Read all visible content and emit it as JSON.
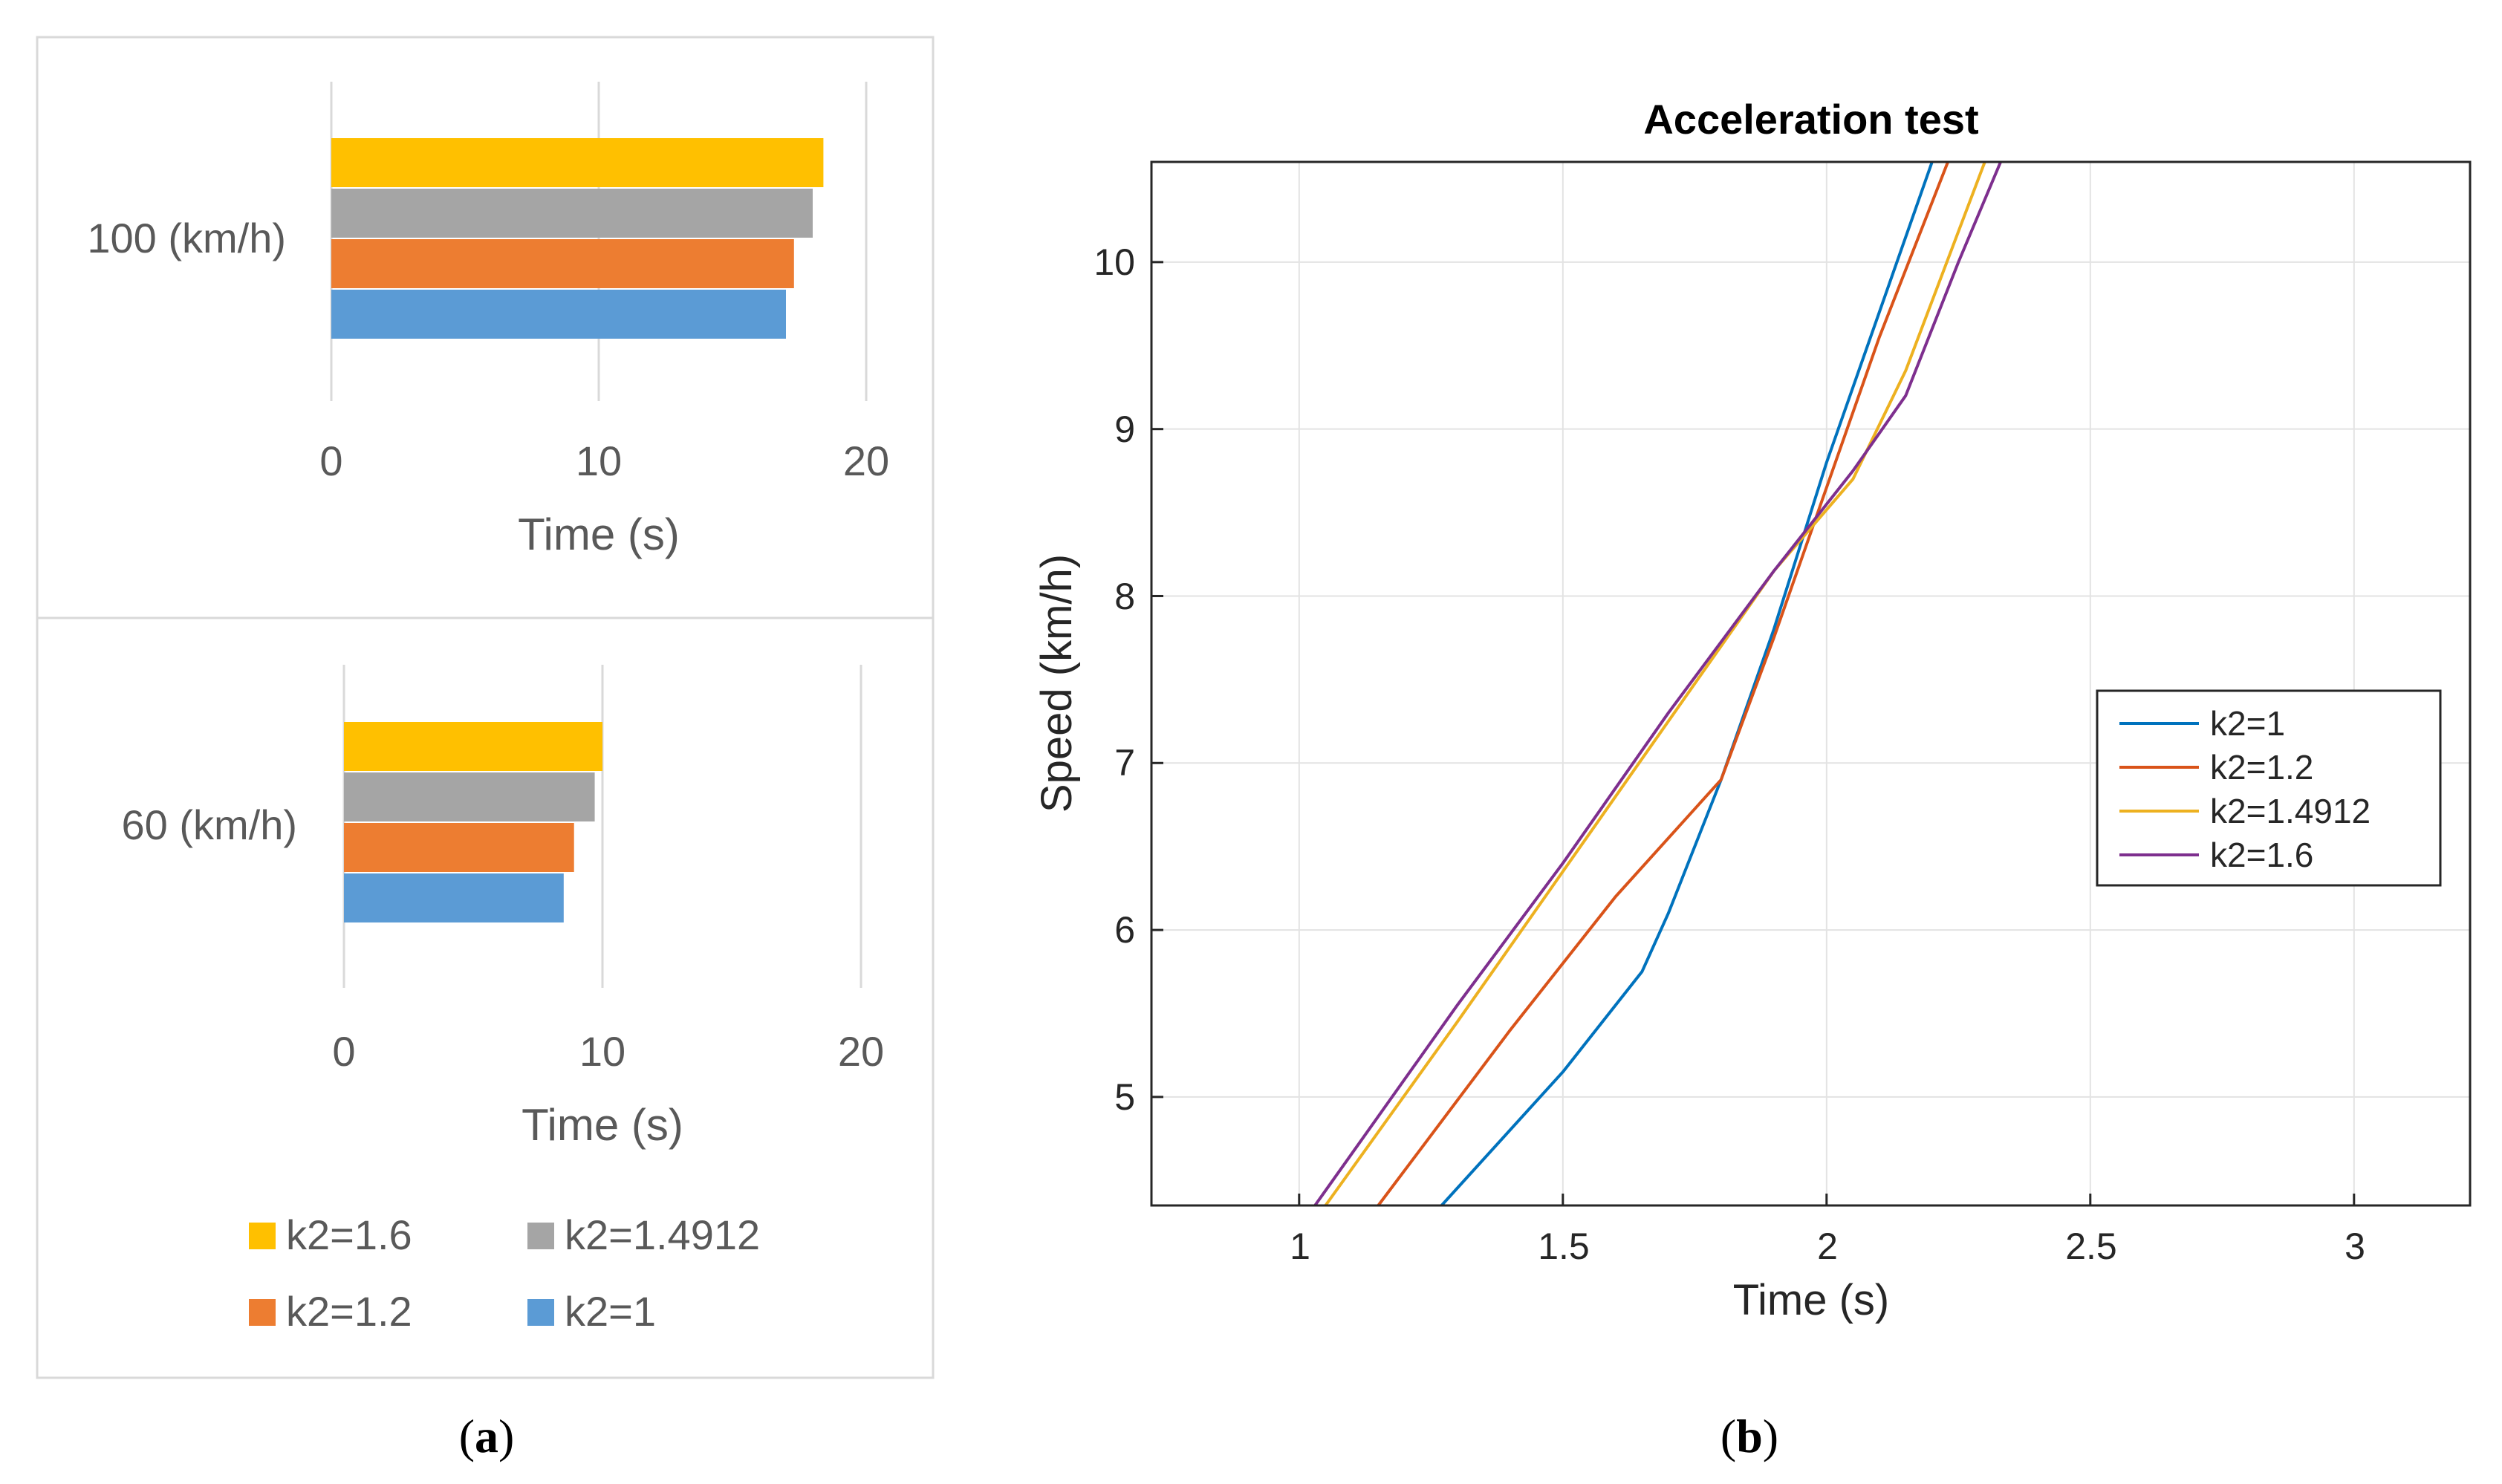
{
  "panels": {
    "a": {
      "caption_letter": "a"
    },
    "b": {
      "caption_letter": "b"
    }
  },
  "legend_a": [
    {
      "label": "k2=1.6",
      "color": "#FFC000"
    },
    {
      "label": "k2=1.4912",
      "color": "#A5A5A5"
    },
    {
      "label": "k2=1.2",
      "color": "#ED7D31"
    },
    {
      "label": "k2=1",
      "color": "#5B9BD5"
    }
  ],
  "chart_data": [
    {
      "id": "bar-100",
      "type": "bar",
      "orientation": "horizontal",
      "categories": [
        "100 (km/h)"
      ],
      "series": [
        {
          "name": "k2=1",
          "color": "#5B9BD5",
          "values": [
            17.0
          ]
        },
        {
          "name": "k2=1.2",
          "color": "#ED7D31",
          "values": [
            17.3
          ]
        },
        {
          "name": "k2=1.4912",
          "color": "#A5A5A5",
          "values": [
            18.0
          ]
        },
        {
          "name": "k2=1.6",
          "color": "#FFC000",
          "values": [
            18.4
          ]
        }
      ],
      "xlabel": "Time (s)",
      "xlim": [
        0,
        20
      ],
      "xticks": [
        "0",
        "10",
        "20"
      ],
      "grid": true
    },
    {
      "id": "bar-60",
      "type": "bar",
      "orientation": "horizontal",
      "categories": [
        "60 (km/h)"
      ],
      "series": [
        {
          "name": "k2=1",
          "color": "#5B9BD5",
          "values": [
            8.5
          ]
        },
        {
          "name": "k2=1.2",
          "color": "#ED7D31",
          "values": [
            8.9
          ]
        },
        {
          "name": "k2=1.4912",
          "color": "#A5A5A5",
          "values": [
            9.7
          ]
        },
        {
          "name": "k2=1.6",
          "color": "#FFC000",
          "values": [
            10.0
          ]
        }
      ],
      "xlabel": "Time (s)",
      "xlim": [
        0,
        20
      ],
      "xticks": [
        "0",
        "10",
        "20"
      ],
      "grid": true
    },
    {
      "id": "line-accel",
      "type": "line",
      "title": "Acceleration test",
      "xlabel": "Time (s)",
      "ylabel": "Speed (km/h)",
      "xlim": [
        0.72,
        3.22
      ],
      "ylim": [
        4.35,
        10.6
      ],
      "xticks": [
        "1",
        "1.5",
        "2",
        "2.5",
        "3"
      ],
      "yticks": [
        "5",
        "6",
        "7",
        "8",
        "9",
        "10"
      ],
      "grid": true,
      "legend_position": "right",
      "series": [
        {
          "name": "k2=1",
          "color": "#0072BD",
          "x": [
            1.27,
            1.5,
            1.65,
            1.7,
            1.8,
            1.9,
            2.0,
            2.1,
            2.2
          ],
          "y": [
            4.35,
            5.15,
            5.75,
            6.1,
            6.9,
            7.8,
            8.8,
            9.7,
            10.6
          ]
        },
        {
          "name": "k2=1.2",
          "color": "#D95319",
          "x": [
            1.15,
            1.4,
            1.6,
            1.8,
            1.9,
            2.0,
            2.1,
            2.23
          ],
          "y": [
            4.35,
            5.4,
            6.2,
            6.9,
            7.75,
            8.65,
            9.55,
            10.6
          ]
        },
        {
          "name": "k2=1.4912",
          "color": "#EDB120",
          "x": [
            1.05,
            1.3,
            1.5,
            1.7,
            1.9,
            2.05,
            2.15,
            2.3
          ],
          "y": [
            4.35,
            5.45,
            6.35,
            7.25,
            8.15,
            8.7,
            9.35,
            10.6
          ]
        },
        {
          "name": "k2=1.6",
          "color": "#7E2F8E",
          "x": [
            1.03,
            1.3,
            1.5,
            1.7,
            1.9,
            2.05,
            2.15,
            2.25,
            2.33
          ],
          "y": [
            4.35,
            5.55,
            6.4,
            7.3,
            8.15,
            8.75,
            9.2,
            10.0,
            10.6
          ]
        }
      ]
    }
  ]
}
